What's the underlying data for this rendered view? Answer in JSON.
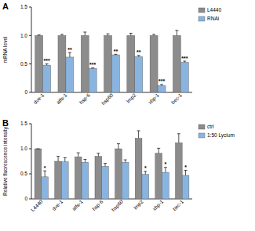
{
  "chart_data": [
    {
      "type": "bar",
      "title": "A",
      "y_label": "mRNA level",
      "categories": [
        "dve-1",
        "atfs-1",
        "hsp-6",
        "hsp60",
        "lmp2",
        "xbp-1",
        "bec-1"
      ],
      "series": [
        {
          "name": "L4440",
          "color": "#8c8c8c",
          "values": [
            1.0,
            1.0,
            1.0,
            1.0,
            1.0,
            1.0,
            1.0
          ],
          "errors": [
            0.01,
            0.02,
            0.06,
            0.03,
            0.04,
            0.02,
            0.09
          ]
        },
        {
          "name": "RNAi",
          "color": "#8ab4e0",
          "values": [
            0.48,
            0.62,
            0.42,
            0.66,
            0.63,
            0.12,
            0.53
          ],
          "errors": [
            0.02,
            0.08,
            0.01,
            0.01,
            0.02,
            0.02,
            0.02
          ],
          "significance": [
            "***",
            "**",
            "***",
            "**",
            "**",
            "***",
            "***"
          ]
        }
      ],
      "ylim": [
        0,
        1.5
      ],
      "yticks": [
        0,
        0.5,
        {
          "value": 1,
          "label": "1.0"
        },
        1.5
      ],
      "legend": "top-right",
      "grid": false
    },
    {
      "type": "bar",
      "title": "B",
      "y_label": "Relative fluorescence intensity",
      "categories": [
        "L4440",
        "dve-1",
        "atfs-1",
        "hsp-6",
        "hsp60",
        "lmp2",
        "xbp-1",
        "bec-1"
      ],
      "series": [
        {
          "name": "ctrl",
          "color": "#8c8c8c",
          "values": [
            1.0,
            0.75,
            0.84,
            0.85,
            1.0,
            1.21,
            0.91,
            1.12
          ],
          "errors": [
            0.0,
            0.1,
            0.08,
            0.06,
            0.1,
            0.15,
            0.1,
            0.18
          ]
        },
        {
          "name": "1:50 Lycium",
          "color": "#8ab4e0",
          "values": [
            0.44,
            0.74,
            0.73,
            0.65,
            0.73,
            0.49,
            0.53,
            0.47
          ],
          "errors": [
            0.12,
            0.08,
            0.06,
            0.06,
            0.05,
            0.06,
            0.1,
            0.1
          ],
          "significance": [
            "*",
            null,
            null,
            null,
            null,
            "*",
            "*",
            "*"
          ]
        }
      ],
      "ylim": [
        0,
        1.5
      ],
      "yticks": [
        0,
        0.5,
        {
          "value": 1,
          "label": "1.0"
        },
        1.5
      ],
      "legend": "top-right",
      "grid": false
    }
  ]
}
